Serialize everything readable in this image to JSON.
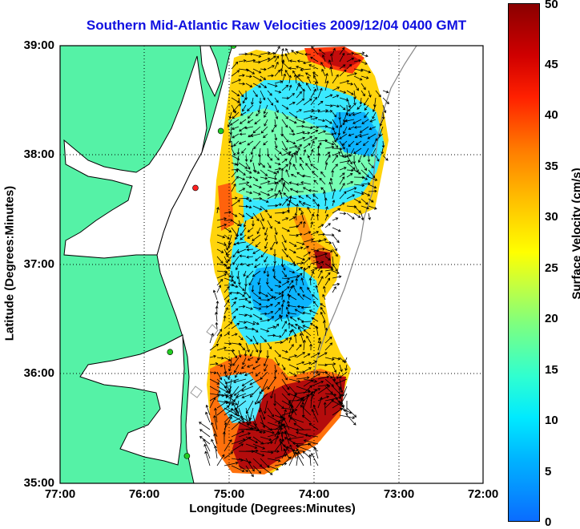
{
  "title": "Southern Mid-Atlantic Raw Velocities 2009/12/04 0400 GMT",
  "axes": {
    "x_label": "Longitude (Degrees:Minutes)",
    "y_label": "Latitude (Degrees:Minutes)",
    "x_ticks": [
      "77:00",
      "76:00",
      "75:00",
      "74:00",
      "73:00",
      "72:00"
    ],
    "y_ticks": [
      "39:00",
      "38:00",
      "37:00",
      "36:00",
      "35:00"
    ],
    "x_range_deg_west": [
      77,
      72
    ],
    "y_range_deg_north": [
      35,
      39
    ],
    "grid": "dotted"
  },
  "colorbar": {
    "label": "Surface Velocity (cm/s)",
    "min": 0,
    "max": 50,
    "ticks": [
      "0",
      "5",
      "10",
      "15",
      "20",
      "25",
      "30",
      "35",
      "40",
      "45",
      "50"
    ],
    "colormap": "jet"
  },
  "colors": {
    "land": "#55f2a6",
    "water": "#ffffff",
    "title": "#1010e0",
    "station": "#22cc22",
    "station_alert": "#ff2020"
  },
  "stations": [
    {
      "lon": -74.95,
      "lat": 39.0,
      "status": "ok"
    },
    {
      "lon": -75.1,
      "lat": 38.22,
      "status": "ok"
    },
    {
      "lon": -75.4,
      "lat": 37.7,
      "status": "alert"
    },
    {
      "lon": -75.7,
      "lat": 36.2,
      "status": "ok"
    },
    {
      "lon": -75.5,
      "lat": 35.25,
      "status": "ok"
    }
  ]
}
